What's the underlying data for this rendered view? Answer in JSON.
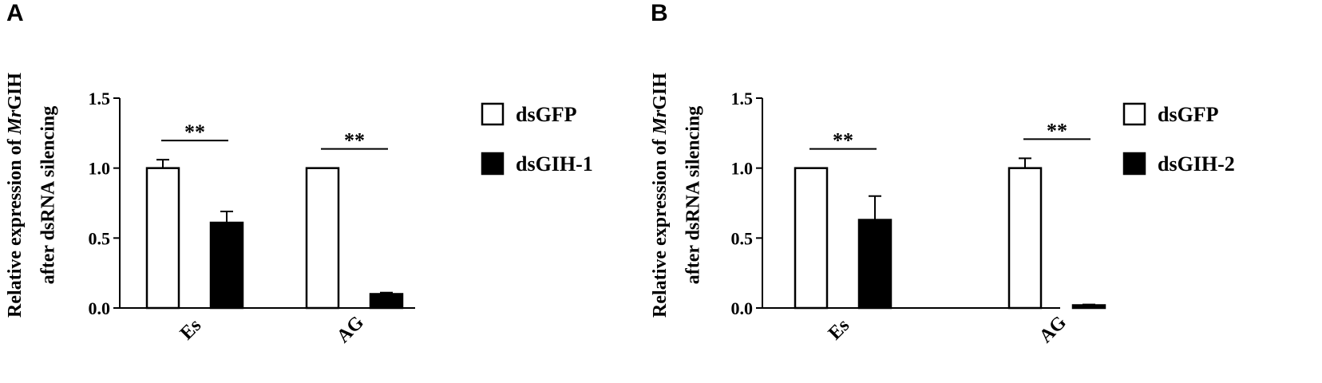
{
  "chart_data": [
    {
      "panel": "A",
      "type": "bar",
      "categories": [
        "Es",
        "AG"
      ],
      "series": [
        {
          "name": "dsGFP",
          "fill": "#ffffff",
          "values": [
            1.0,
            1.0
          ],
          "errors": [
            0.06,
            0.0
          ]
        },
        {
          "name": "dsGIH-1",
          "fill": "#000000",
          "values": [
            0.61,
            0.1
          ],
          "errors": [
            0.08,
            0.01
          ]
        }
      ],
      "significance": [
        "**",
        "**"
      ],
      "ylabel_line1_prefix": "Relative expression of ",
      "ylabel_line1_italic": "Mr",
      "ylabel_line1_suffix": "GIH",
      "ylabel_line2": "after dsRNA silencing",
      "ylim": [
        0,
        1.5
      ],
      "yticks": [
        "0.0",
        "0.5",
        "1.0",
        "1.5"
      ],
      "legend": "right"
    },
    {
      "panel": "B",
      "type": "bar",
      "categories": [
        "Es",
        "AG"
      ],
      "series": [
        {
          "name": "dsGFP",
          "fill": "#ffffff",
          "values": [
            1.0,
            1.0
          ],
          "errors": [
            0.0,
            0.07
          ]
        },
        {
          "name": "dsGIH-2",
          "fill": "#000000",
          "values": [
            0.63,
            0.02
          ],
          "errors": [
            0.17,
            0.005
          ]
        }
      ],
      "significance": [
        "**",
        "**"
      ],
      "ylabel_line1_prefix": "Relative expression of ",
      "ylabel_line1_italic": "Mr",
      "ylabel_line1_suffix": "GIH",
      "ylabel_line2": "after dsRNA silencing",
      "ylim": [
        0,
        1.5
      ],
      "yticks": [
        "0.0",
        "0.5",
        "1.0",
        "1.5"
      ],
      "legend": "right"
    }
  ]
}
